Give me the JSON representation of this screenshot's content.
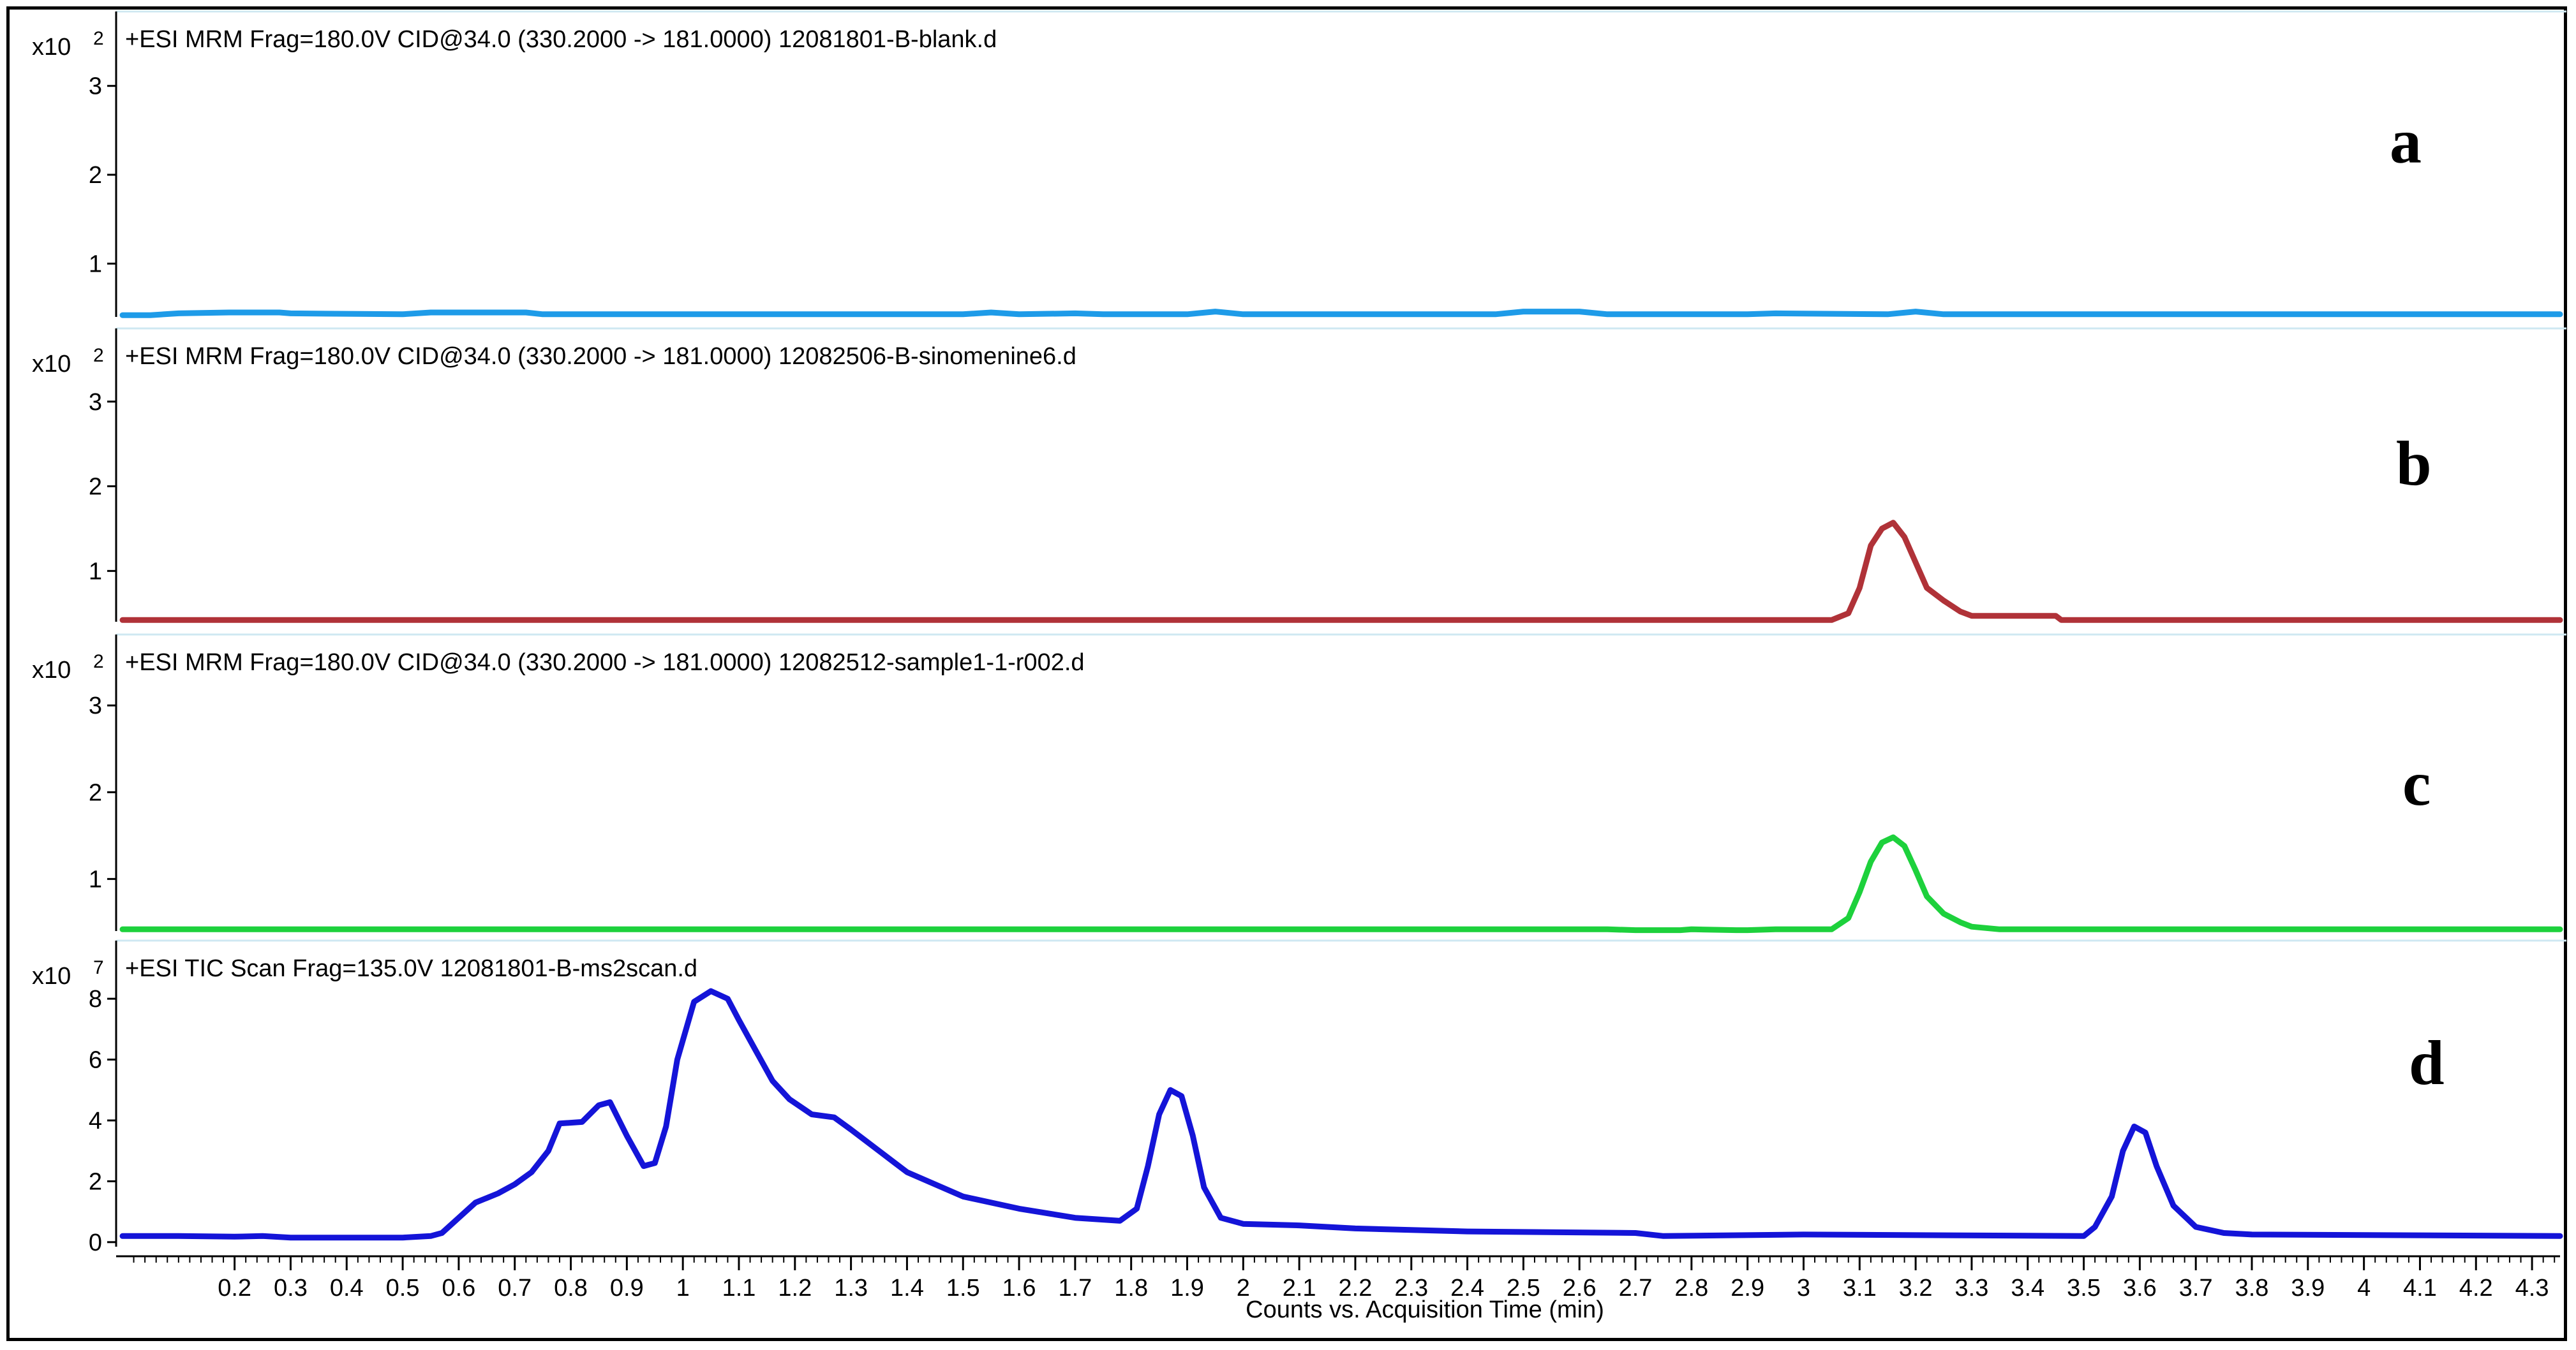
{
  "chart_data": [
    {
      "type": "line",
      "panel_letter": "a",
      "header": "+ESI MRM Frag=180.0V CID@34.0 (330.2000 -> 181.0000) 12081801-B-blank.d",
      "y_multiplier": {
        "base": "x10",
        "exponent": "2"
      },
      "yticks": [
        1,
        2,
        3
      ],
      "ylim": [
        0.4,
        3.45
      ],
      "xlim": [
        0.0,
        4.35
      ],
      "line_color": "#1e9be8",
      "series": [
        {
          "x": [
            0.0,
            0.05,
            0.1,
            0.19,
            0.28,
            0.3,
            0.5,
            0.55,
            0.6,
            0.72,
            0.75,
            1.5,
            1.55,
            1.6,
            1.7,
            1.75,
            1.9,
            1.95,
            2.0,
            2.4,
            2.45,
            2.5,
            2.6,
            2.65,
            2.9,
            2.95,
            3.15,
            3.2,
            3.25,
            4.35
          ],
          "y": [
            0.42,
            0.42,
            0.44,
            0.45,
            0.45,
            0.44,
            0.43,
            0.45,
            0.45,
            0.45,
            0.43,
            0.43,
            0.45,
            0.43,
            0.44,
            0.43,
            0.43,
            0.46,
            0.43,
            0.43,
            0.43,
            0.46,
            0.46,
            0.43,
            0.43,
            0.44,
            0.43,
            0.46,
            0.43,
            0.43
          ]
        }
      ]
    },
    {
      "type": "line",
      "panel_letter": "b",
      "header": "+ESI MRM Frag=180.0V CID@34.0 (330.2000 -> 181.0000) 12082506-B-sinomenine6.d",
      "y_multiplier": {
        "base": "x10",
        "exponent": "2"
      },
      "yticks": [
        1,
        2,
        3
      ],
      "ylim": [
        0.4,
        3.45
      ],
      "xlim": [
        0.0,
        4.35
      ],
      "line_color": "#b03238",
      "series": [
        {
          "x": [
            0.0,
            3.05,
            3.08,
            3.1,
            3.12,
            3.14,
            3.16,
            3.18,
            3.2,
            3.22,
            3.25,
            3.28,
            3.3,
            3.45,
            3.46,
            4.35
          ],
          "y": [
            0.42,
            0.42,
            0.5,
            0.8,
            1.3,
            1.5,
            1.57,
            1.4,
            1.1,
            0.8,
            0.65,
            0.52,
            0.47,
            0.47,
            0.42,
            0.42
          ]
        }
      ]
    },
    {
      "type": "line",
      "panel_letter": "c",
      "header": "+ESI MRM Frag=180.0V CID@34.0 (330.2000 -> 181.0000) 12082512-sample1-1-r002.d",
      "y_multiplier": {
        "base": "x10",
        "exponent": "2"
      },
      "yticks": [
        1,
        2,
        3
      ],
      "ylim": [
        0.4,
        3.45
      ],
      "xlim": [
        0.0,
        4.35
      ],
      "line_color": "#1dd13c",
      "series": [
        {
          "x": [
            0.0,
            2.65,
            2.7,
            2.78,
            2.8,
            2.88,
            2.9,
            2.95,
            3.05,
            3.08,
            3.1,
            3.12,
            3.14,
            3.16,
            3.18,
            3.2,
            3.22,
            3.25,
            3.28,
            3.3,
            3.35,
            4.35
          ],
          "y": [
            0.42,
            0.42,
            0.41,
            0.41,
            0.42,
            0.41,
            0.41,
            0.42,
            0.42,
            0.55,
            0.85,
            1.2,
            1.42,
            1.48,
            1.38,
            1.1,
            0.8,
            0.6,
            0.5,
            0.45,
            0.42,
            0.42
          ]
        }
      ]
    },
    {
      "type": "line",
      "panel_letter": "d",
      "header": "+ESI TIC Scan Frag=135.0V 12081801-B-ms2scan.d",
      "y_multiplier": {
        "base": "x10",
        "exponent": "7"
      },
      "yticks": [
        0,
        2,
        4,
        6,
        8
      ],
      "ylim": [
        -0.15,
        8.8
      ],
      "xlim": [
        0.0,
        4.35
      ],
      "line_color": "#1414d8",
      "series": [
        {
          "x": [
            0.0,
            0.1,
            0.2,
            0.25,
            0.3,
            0.5,
            0.55,
            0.57,
            0.6,
            0.63,
            0.67,
            0.7,
            0.73,
            0.76,
            0.78,
            0.82,
            0.85,
            0.87,
            0.9,
            0.93,
            0.95,
            0.97,
            0.99,
            1.02,
            1.05,
            1.08,
            1.1,
            1.13,
            1.16,
            1.19,
            1.23,
            1.27,
            1.3,
            1.35,
            1.4,
            1.5,
            1.6,
            1.7,
            1.78,
            1.81,
            1.83,
            1.85,
            1.87,
            1.89,
            1.91,
            1.93,
            1.96,
            2.0,
            2.1,
            2.2,
            2.4,
            2.7,
            2.75,
            3.0,
            3.5,
            3.52,
            3.55,
            3.57,
            3.59,
            3.61,
            3.63,
            3.66,
            3.7,
            3.75,
            3.8,
            4.35
          ],
          "y": [
            0.2,
            0.2,
            0.18,
            0.2,
            0.15,
            0.15,
            0.2,
            0.3,
            0.8,
            1.3,
            1.6,
            1.9,
            2.3,
            3.0,
            3.9,
            3.95,
            4.5,
            4.6,
            3.5,
            2.5,
            2.6,
            3.8,
            6.0,
            7.9,
            8.25,
            8.0,
            7.3,
            6.3,
            5.3,
            4.7,
            4.2,
            4.1,
            3.7,
            3.0,
            2.3,
            1.5,
            1.1,
            0.8,
            0.7,
            1.1,
            2.5,
            4.2,
            5.0,
            4.8,
            3.5,
            1.8,
            0.8,
            0.6,
            0.55,
            0.45,
            0.35,
            0.3,
            0.2,
            0.25,
            0.2,
            0.5,
            1.5,
            3.0,
            3.8,
            3.6,
            2.5,
            1.2,
            0.5,
            0.3,
            0.25,
            0.2
          ]
        }
      ]
    }
  ],
  "x_axis": {
    "label": "Counts vs. Acquisition Time (min)",
    "xlim": [
      0.0,
      4.35
    ],
    "ticks": [
      0.2,
      0.3,
      0.4,
      0.5,
      0.6,
      0.7,
      0.8,
      0.9,
      1,
      1.1,
      1.2,
      1.3,
      1.4,
      1.5,
      1.6,
      1.7,
      1.8,
      1.9,
      2,
      2.1,
      2.2,
      2.3,
      2.4,
      2.5,
      2.6,
      2.7,
      2.8,
      2.9,
      3,
      3.1,
      3.2,
      3.3,
      3.4,
      3.5,
      3.6,
      3.7,
      3.8,
      3.9,
      4,
      4.1,
      4.2,
      4.3
    ]
  }
}
